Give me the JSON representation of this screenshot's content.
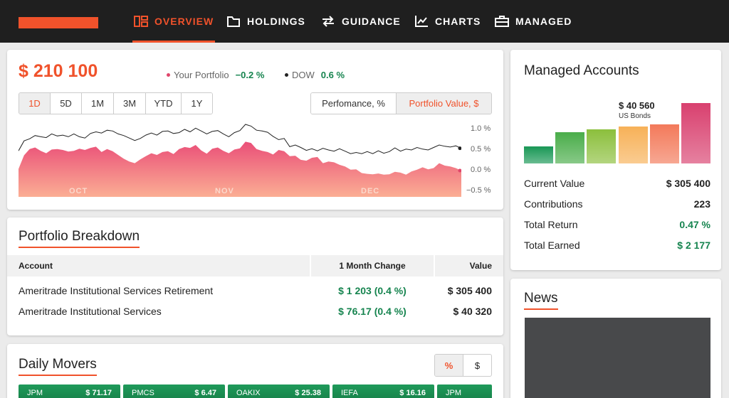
{
  "nav": {
    "items": [
      {
        "label": "OVERVIEW",
        "icon": "dashboard-icon",
        "active": true
      },
      {
        "label": "HOLDINGS",
        "icon": "folder-icon"
      },
      {
        "label": "GUIDANCE",
        "icon": "arrows-icon"
      },
      {
        "label": "CHARTS",
        "icon": "line-chart-icon"
      },
      {
        "label": "MANAGED",
        "icon": "briefcase-icon"
      }
    ]
  },
  "portfolio": {
    "value": "$ 210 100",
    "legend": [
      {
        "label": "Your Portfolio",
        "change": "−0.2 %",
        "color": "#e0466b"
      },
      {
        "label": "DOW",
        "change": "0.6 %",
        "color": "#222222"
      }
    ],
    "ranges": [
      "1D",
      "5D",
      "1M",
      "3M",
      "YTD",
      "1Y"
    ],
    "selected_range": "1D",
    "modes": [
      "Perfomance, %",
      "Portfolio Value, $"
    ],
    "selected_mode": "Portfolio Value, $"
  },
  "chart_data": {
    "type": "area",
    "x_labels": [
      "OCT",
      "NOV",
      "DEC"
    ],
    "y_ticks": [
      "1.0 %",
      "0.5 %",
      "0.0 %",
      "−0.5 %"
    ],
    "ylim": [
      -0.5,
      1.0
    ],
    "series": [
      {
        "name": "Your Portfolio",
        "color": "#e0466b",
        "values": [
          0.04,
          0.37,
          0.52,
          0.56,
          0.48,
          0.42,
          0.51,
          0.52,
          0.5,
          0.46,
          0.48,
          0.53,
          0.5,
          0.55,
          0.58,
          0.45,
          0.52,
          0.47,
          0.38,
          0.29,
          0.22,
          0.18,
          0.27,
          0.35,
          0.42,
          0.38,
          0.45,
          0.47,
          0.4,
          0.52,
          0.57,
          0.55,
          0.62,
          0.49,
          0.41,
          0.53,
          0.56,
          0.48,
          0.42,
          0.51,
          0.54,
          0.7,
          0.67,
          0.52,
          0.48,
          0.45,
          0.39,
          0.5,
          0.47,
          0.35,
          0.36,
          0.26,
          0.24,
          0.31,
          0.33,
          0.18,
          0.22,
          0.2,
          0.14,
          0.1,
          0.02,
          0.03,
          -0.06,
          -0.08,
          -0.09,
          -0.07,
          -0.1,
          -0.09,
          -0.03,
          -0.05,
          -0.1,
          -0.02,
          0.02,
          0.08,
          0.03,
          0.06,
          0.18,
          0.12,
          0.1,
          0.06,
          0.0
        ]
      },
      {
        "name": "DOW",
        "color": "#222222",
        "values": [
          0.48,
          0.72,
          0.77,
          0.85,
          0.82,
          0.8,
          0.89,
          0.84,
          0.86,
          0.82,
          0.89,
          0.82,
          0.79,
          0.9,
          0.94,
          0.91,
          0.98,
          0.96,
          0.89,
          0.85,
          0.79,
          0.73,
          0.78,
          0.86,
          0.91,
          0.86,
          0.95,
          0.96,
          0.9,
          0.92,
          1.0,
          0.94,
          1.03,
          0.96,
          0.89,
          0.95,
          0.97,
          0.89,
          0.82,
          0.92,
          0.97,
          1.12,
          1.08,
          0.98,
          0.96,
          0.93,
          0.83,
          0.75,
          0.78,
          0.58,
          0.62,
          0.56,
          0.49,
          0.53,
          0.48,
          0.54,
          0.5,
          0.47,
          0.53,
          0.47,
          0.41,
          0.44,
          0.41,
          0.46,
          0.41,
          0.48,
          0.42,
          0.46,
          0.55,
          0.47,
          0.52,
          0.5,
          0.56,
          0.52,
          0.5,
          0.56,
          0.62,
          0.59,
          0.57,
          0.6,
          0.54
        ]
      }
    ]
  },
  "breakdown": {
    "title": "Portfolio Breakdown",
    "columns": [
      "Account",
      "1 Month Change",
      "Value"
    ],
    "rows": [
      {
        "account": "Ameritrade Institutional Services Retirement",
        "change": "$ 1 203 (0.4 %)",
        "value": "$ 305 400"
      },
      {
        "account": "Ameritrade Institutional Services",
        "change": "$ 76.17 (0.4 %)",
        "value": "$ 40 320"
      }
    ]
  },
  "movers": {
    "title": "Daily Movers",
    "toggle": [
      "%",
      "$"
    ],
    "items": [
      {
        "symbol": "JPM",
        "value": "$ 71.17"
      },
      {
        "symbol": "PMCS",
        "value": "$ 6.47"
      },
      {
        "symbol": "OAKIX",
        "value": "$ 25.38"
      },
      {
        "symbol": "IEFA",
        "value": "$ 16.16"
      },
      {
        "symbol": "JPM",
        "value": ""
      }
    ]
  },
  "managed": {
    "title": "Managed Accounts",
    "tooltip": {
      "value": "$ 40 560",
      "label": "US Bonds"
    },
    "bars": [
      {
        "level": 0.28,
        "color": "#1f9a5a"
      },
      {
        "level": 0.52,
        "color": "#4cae4c"
      },
      {
        "level": 0.57,
        "color": "#8dc03f"
      },
      {
        "level": 0.61,
        "color": "#f7b25a"
      },
      {
        "level": 0.65,
        "color": "#f37b5c"
      },
      {
        "level": 1.0,
        "color": "#d94270"
      }
    ],
    "stats": [
      {
        "label": "Current Value",
        "value": "$ 305 400",
        "color": "#222222"
      },
      {
        "label": "Contributions",
        "value": "223",
        "color": "#222222"
      },
      {
        "label": "Total Return",
        "value": "0.47 %",
        "color": "#16844f"
      },
      {
        "label": "Total Earned",
        "value": "$ 2 177",
        "color": "#16844f"
      }
    ]
  },
  "news": {
    "title": "News"
  }
}
